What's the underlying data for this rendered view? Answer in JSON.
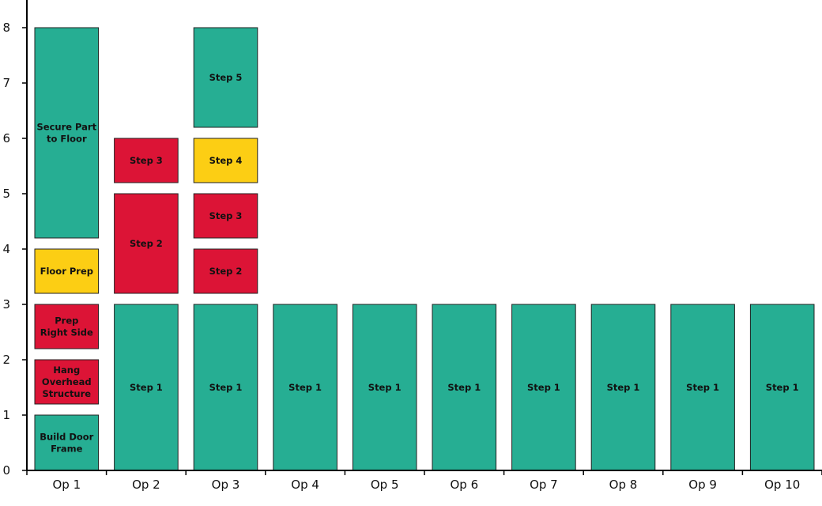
{
  "chart_data": {
    "type": "bar",
    "stacked": true,
    "title": "",
    "xlabel": "",
    "ylabel": "",
    "ylim": [
      0,
      8.6
    ],
    "yticks": [
      0,
      1,
      2,
      3,
      4,
      5,
      6,
      7,
      8
    ],
    "grid": false,
    "categories": [
      "Op 1",
      "Op 2",
      "Op 3",
      "Op 4",
      "Op 5",
      "Op 6",
      "Op 7",
      "Op 8",
      "Op 9",
      "Op 10"
    ],
    "colors": {
      "teal": "#26ae93",
      "red": "#dc1436",
      "yellow": "#fcce14"
    },
    "bars": [
      {
        "category": "Op 1",
        "segments": [
          {
            "label": "Build Door Frame",
            "lines": [
              "Build Door",
              "Frame"
            ],
            "start": 0,
            "end": 1,
            "color": "teal"
          },
          {
            "label": "Hang Overhead Structure",
            "lines": [
              "Hang",
              "Overhead",
              "Structure"
            ],
            "start": 1,
            "end": 2,
            "color": "red"
          },
          {
            "label": "Prep Right Side",
            "lines": [
              "Prep",
              "Right Side"
            ],
            "start": 2,
            "end": 3,
            "color": "red"
          },
          {
            "label": "Floor Prep",
            "lines": [
              "Floor Prep"
            ],
            "start": 3,
            "end": 4,
            "color": "yellow"
          },
          {
            "label": "Secure Part to Floor",
            "lines": [
              "Secure Part",
              "to Floor"
            ],
            "start": 4,
            "end": 8,
            "color": "teal"
          }
        ]
      },
      {
        "category": "Op 2",
        "segments": [
          {
            "label": "Step 1",
            "lines": [
              "Step 1"
            ],
            "start": 0,
            "end": 3,
            "color": "teal"
          },
          {
            "label": "Step 2",
            "lines": [
              "Step 2"
            ],
            "start": 3,
            "end": 5,
            "color": "red"
          },
          {
            "label": "Step 3",
            "lines": [
              "Step 3"
            ],
            "start": 5,
            "end": 6,
            "color": "red"
          }
        ]
      },
      {
        "category": "Op 3",
        "segments": [
          {
            "label": "Step 1",
            "lines": [
              "Step 1"
            ],
            "start": 0,
            "end": 3,
            "color": "teal"
          },
          {
            "label": "Step 2",
            "lines": [
              "Step 2"
            ],
            "start": 3,
            "end": 4,
            "color": "red"
          },
          {
            "label": "Step 3",
            "lines": [
              "Step 3"
            ],
            "start": 4,
            "end": 5,
            "color": "red"
          },
          {
            "label": "Step 4",
            "lines": [
              "Step 4"
            ],
            "start": 5,
            "end": 6,
            "color": "yellow"
          },
          {
            "label": "Step 5",
            "lines": [
              "Step 5"
            ],
            "start": 6,
            "end": 8,
            "color": "teal"
          }
        ]
      },
      {
        "category": "Op 4",
        "segments": [
          {
            "label": "Step 1",
            "lines": [
              "Step 1"
            ],
            "start": 0,
            "end": 3,
            "color": "teal"
          }
        ]
      },
      {
        "category": "Op 5",
        "segments": [
          {
            "label": "Step 1",
            "lines": [
              "Step 1"
            ],
            "start": 0,
            "end": 3,
            "color": "teal"
          }
        ]
      },
      {
        "category": "Op 6",
        "segments": [
          {
            "label": "Step 1",
            "lines": [
              "Step 1"
            ],
            "start": 0,
            "end": 3,
            "color": "teal"
          }
        ]
      },
      {
        "category": "Op 7",
        "segments": [
          {
            "label": "Step 1",
            "lines": [
              "Step 1"
            ],
            "start": 0,
            "end": 3,
            "color": "teal"
          }
        ]
      },
      {
        "category": "Op 8",
        "segments": [
          {
            "label": "Step 1",
            "lines": [
              "Step 1"
            ],
            "start": 0,
            "end": 3,
            "color": "teal"
          }
        ]
      },
      {
        "category": "Op 9",
        "segments": [
          {
            "label": "Step 1",
            "lines": [
              "Step 1"
            ],
            "start": 0,
            "end": 3,
            "color": "teal"
          }
        ]
      },
      {
        "category": "Op 10",
        "segments": [
          {
            "label": "Step 1",
            "lines": [
              "Step 1"
            ],
            "start": 0,
            "end": 3,
            "color": "teal"
          }
        ]
      }
    ]
  }
}
